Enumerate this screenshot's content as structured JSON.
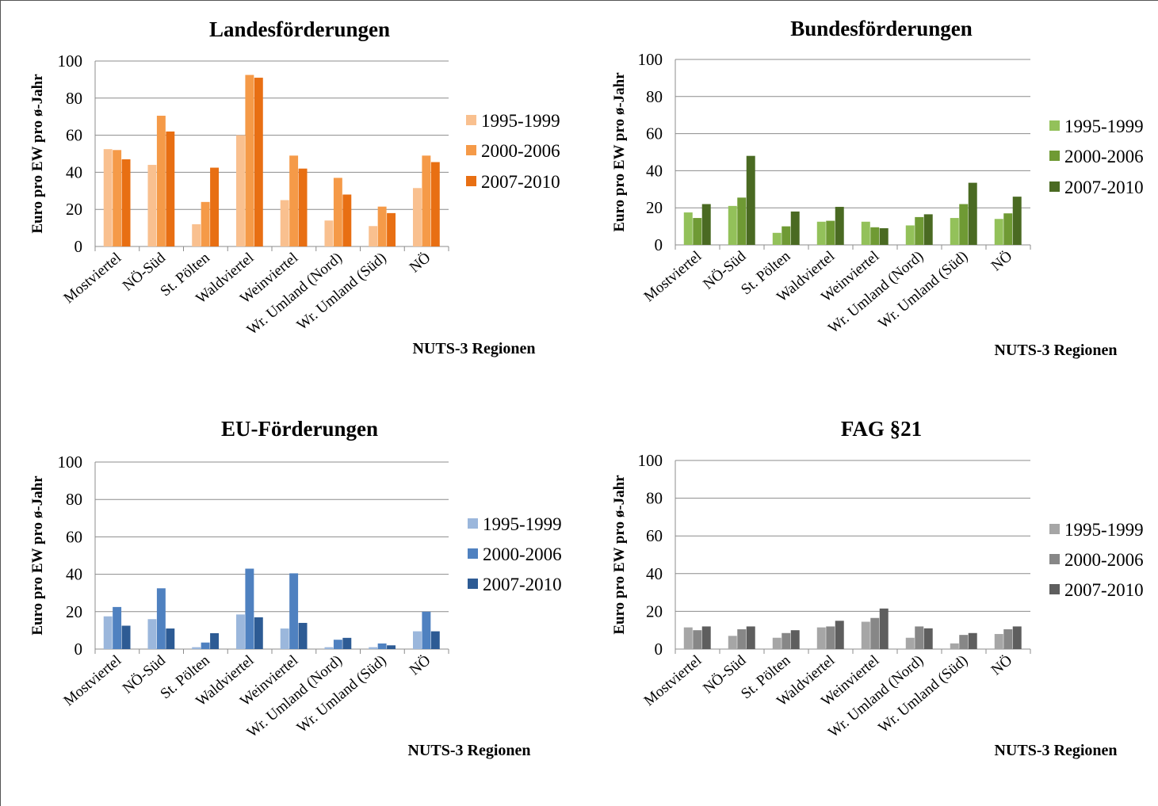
{
  "chart_data": [
    {
      "type": "bar",
      "title": "Landesförderungen",
      "xlabel": "NUTS-3 Regionen",
      "ylabel": "Euro pro EW pro ø-Jahr",
      "ylim": [
        0,
        100
      ],
      "yticks": [
        0,
        20,
        40,
        60,
        80,
        100
      ],
      "grid": true,
      "legend": "right",
      "categories": [
        "Mostviertel",
        "NÖ-Süd",
        "St. Pölten",
        "Waldviertel",
        "Weinviertel",
        "Wr. Umland (Nord)",
        "Wr. Umland (Süd)",
        "NÖ"
      ],
      "series": [
        {
          "name": "1995-1999",
          "color": "#f9c08f",
          "values": [
            52.5,
            44,
            12,
            60,
            25,
            14,
            11,
            31.5
          ]
        },
        {
          "name": "2000-2006",
          "color": "#f59a48",
          "values": [
            52,
            70.5,
            24,
            92.5,
            49,
            37,
            21.5,
            49
          ]
        },
        {
          "name": "2007-2010",
          "color": "#e86f13",
          "values": [
            47,
            62,
            42.5,
            91,
            42,
            28,
            18,
            45.5
          ]
        }
      ]
    },
    {
      "type": "bar",
      "title": "Bundesförderungen",
      "xlabel": "NUTS-3 Regionen",
      "ylabel": "Euro pro EW pro ø-Jahr",
      "ylim": [
        0,
        100
      ],
      "yticks": [
        0,
        20,
        40,
        60,
        80,
        100
      ],
      "grid": true,
      "legend": "right",
      "categories": [
        "Mostviertel",
        "NÖ-Süd",
        "St. Pölten",
        "Waldviertel",
        "Weinviertel",
        "Wr. Umland (Nord)",
        "Wr. Umland (Süd)",
        "NÖ"
      ],
      "series": [
        {
          "name": "1995-1999",
          "color": "#93c15a",
          "values": [
            17.5,
            21,
            6.5,
            12.5,
            12.5,
            10.5,
            14.5,
            14
          ]
        },
        {
          "name": "2000-2006",
          "color": "#6f9a34",
          "values": [
            14.5,
            25.5,
            10,
            13,
            9.5,
            15,
            22,
            17
          ]
        },
        {
          "name": "2007-2010",
          "color": "#4a6a22",
          "values": [
            22,
            48,
            18,
            20.5,
            9,
            16.5,
            33.5,
            26
          ]
        }
      ]
    },
    {
      "type": "bar",
      "title": "EU-Förderungen",
      "xlabel": "NUTS-3 Regionen",
      "ylabel": "Euro pro EW pro ø-Jahr",
      "ylim": [
        0,
        100
      ],
      "yticks": [
        0,
        20,
        40,
        60,
        80,
        100
      ],
      "grid": true,
      "legend": "right",
      "categories": [
        "Mostviertel",
        "NÖ-Süd",
        "St. Pölten",
        "Waldviertel",
        "Weinviertel",
        "Wr. Umland (Nord)",
        "Wr. Umland (Süd)",
        "NÖ"
      ],
      "series": [
        {
          "name": "1995-1999",
          "color": "#9bb7dc",
          "values": [
            17.5,
            16,
            1,
            18.5,
            11,
            1,
            1,
            9.5
          ]
        },
        {
          "name": "2000-2006",
          "color": "#4f81c0",
          "values": [
            22.5,
            32.5,
            3.5,
            43,
            40.5,
            5,
            3,
            20
          ]
        },
        {
          "name": "2007-2010",
          "color": "#2d5b94",
          "values": [
            12.5,
            11,
            8.5,
            17,
            14,
            6,
            2,
            9.5
          ]
        }
      ]
    },
    {
      "type": "bar",
      "title": "FAG §21",
      "xlabel": "NUTS-3 Regionen",
      "ylabel": "Euro pro EW pro ø-Jahr",
      "ylim": [
        0,
        100
      ],
      "yticks": [
        0,
        20,
        40,
        60,
        80,
        100
      ],
      "grid": true,
      "legend": "right",
      "categories": [
        "Mostviertel",
        "NÖ-Süd",
        "St. Pölten",
        "Waldviertel",
        "Weinviertel",
        "Wr. Umland (Nord)",
        "Wr. Umland (Süd)",
        "NÖ"
      ],
      "series": [
        {
          "name": "1995-1999",
          "color": "#a6a6a6",
          "values": [
            11.5,
            7,
            6,
            11.5,
            14.5,
            6,
            3,
            8
          ]
        },
        {
          "name": "2000-2006",
          "color": "#878787",
          "values": [
            10,
            10.5,
            8.5,
            12,
            16.5,
            12,
            7.5,
            10.5
          ]
        },
        {
          "name": "2007-2010",
          "color": "#5e5e5e",
          "values": [
            12,
            12,
            10,
            15,
            21.5,
            11,
            8.5,
            12
          ]
        }
      ]
    }
  ]
}
